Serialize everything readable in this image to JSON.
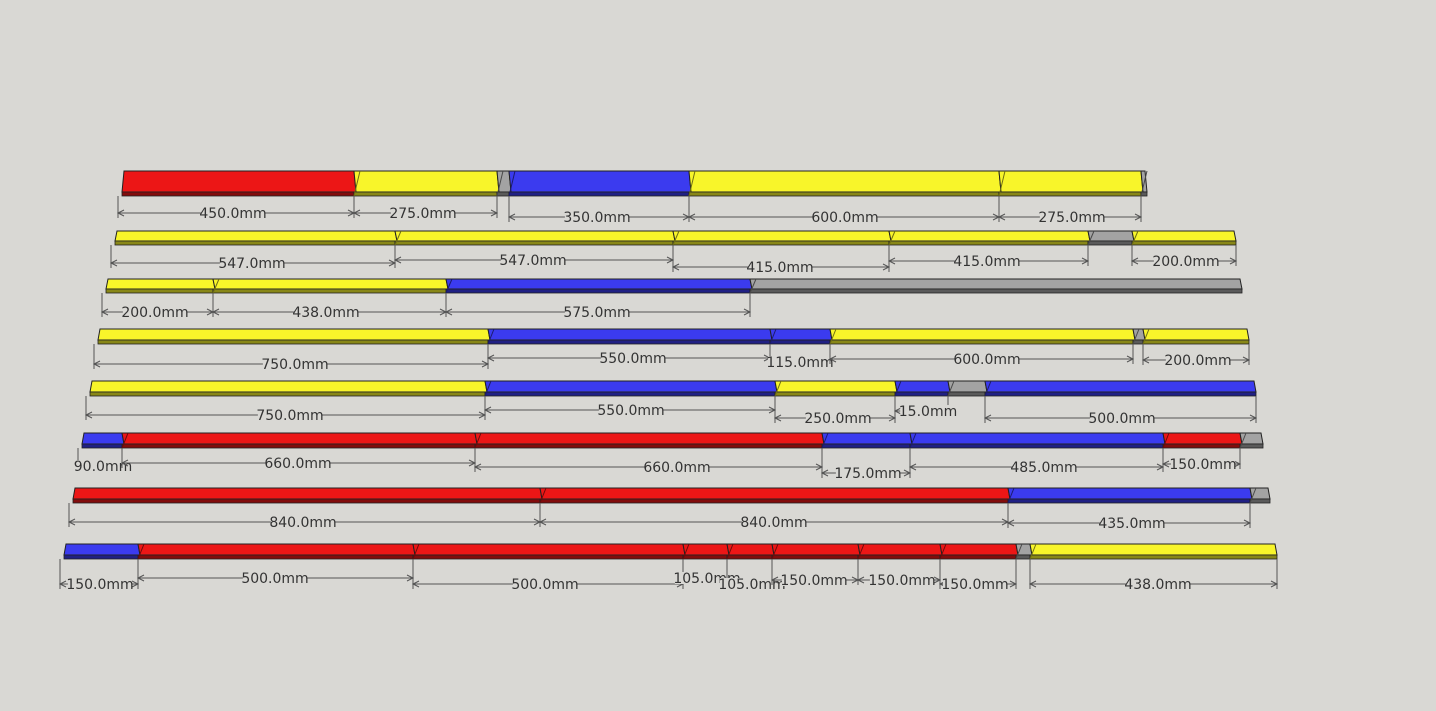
{
  "colors": {
    "red": "#ec1616",
    "yellow": "#f8f52a",
    "blue": "#3b3bef",
    "grey": "#a3a3a3",
    "background": "#d9d8d4"
  },
  "bars": [
    {
      "segments": [
        {
          "color": "red",
          "dim": "450.0mm"
        },
        {
          "color": "yellow",
          "dim": "275.0mm"
        },
        {
          "color": "grey",
          "dim": ""
        },
        {
          "color": "blue",
          "dim": "350.0mm"
        },
        {
          "color": "yellow",
          "dim": "600.0mm"
        },
        {
          "color": "yellow",
          "dim": "275.0mm"
        },
        {
          "color": "grey",
          "dim": ""
        }
      ]
    },
    {
      "segments": [
        {
          "color": "yellow",
          "dim": "547.0mm"
        },
        {
          "color": "yellow",
          "dim": "547.0mm"
        },
        {
          "color": "yellow",
          "dim": "415.0mm"
        },
        {
          "color": "yellow",
          "dim": "415.0mm"
        },
        {
          "color": "grey",
          "dim": ""
        },
        {
          "color": "yellow",
          "dim": "200.0mm"
        }
      ]
    },
    {
      "segments": [
        {
          "color": "yellow",
          "dim": "200.0mm"
        },
        {
          "color": "yellow",
          "dim": "438.0mm"
        },
        {
          "color": "blue",
          "dim": "575.0mm"
        },
        {
          "color": "grey",
          "dim": ""
        }
      ]
    },
    {
      "segments": [
        {
          "color": "yellow",
          "dim": "750.0mm"
        },
        {
          "color": "blue",
          "dim": "550.0mm"
        },
        {
          "color": "blue",
          "dim": "115.0mm"
        },
        {
          "color": "yellow",
          "dim": "600.0mm"
        },
        {
          "color": "grey",
          "dim": ""
        },
        {
          "color": "yellow",
          "dim": "200.0mm"
        }
      ]
    },
    {
      "segments": [
        {
          "color": "yellow",
          "dim": "750.0mm"
        },
        {
          "color": "blue",
          "dim": "550.0mm"
        },
        {
          "color": "yellow",
          "dim": "250.0mm"
        },
        {
          "color": "blue",
          "dim": "15.0mm"
        },
        {
          "color": "grey",
          "dim": ""
        },
        {
          "color": "blue",
          "dim": "500.0mm"
        }
      ]
    },
    {
      "segments": [
        {
          "color": "blue",
          "dim": "90.0mm"
        },
        {
          "color": "red",
          "dim": "660.0mm"
        },
        {
          "color": "red",
          "dim": "660.0mm"
        },
        {
          "color": "blue",
          "dim": "175.0mm"
        },
        {
          "color": "blue",
          "dim": "485.0mm"
        },
        {
          "color": "red",
          "dim": "150.0mm"
        },
        {
          "color": "grey",
          "dim": ""
        }
      ]
    },
    {
      "segments": [
        {
          "color": "red",
          "dim": "840.0mm"
        },
        {
          "color": "red",
          "dim": "840.0mm"
        },
        {
          "color": "blue",
          "dim": "435.0mm"
        },
        {
          "color": "grey",
          "dim": ""
        }
      ]
    },
    {
      "segments": [
        {
          "color": "blue",
          "dim": "150.0mm"
        },
        {
          "color": "red",
          "dim": "500.0mm"
        },
        {
          "color": "red",
          "dim": "500.0mm"
        },
        {
          "color": "red",
          "dim": "105.0mm"
        },
        {
          "color": "red",
          "dim": "105.0mm"
        },
        {
          "color": "red",
          "dim": "150.0mm"
        },
        {
          "color": "red",
          "dim": "150.0mm"
        },
        {
          "color": "red",
          "dim": "150.0mm"
        },
        {
          "color": "grey",
          "dim": ""
        },
        {
          "color": "yellow",
          "dim": "438.0mm"
        }
      ]
    }
  ]
}
